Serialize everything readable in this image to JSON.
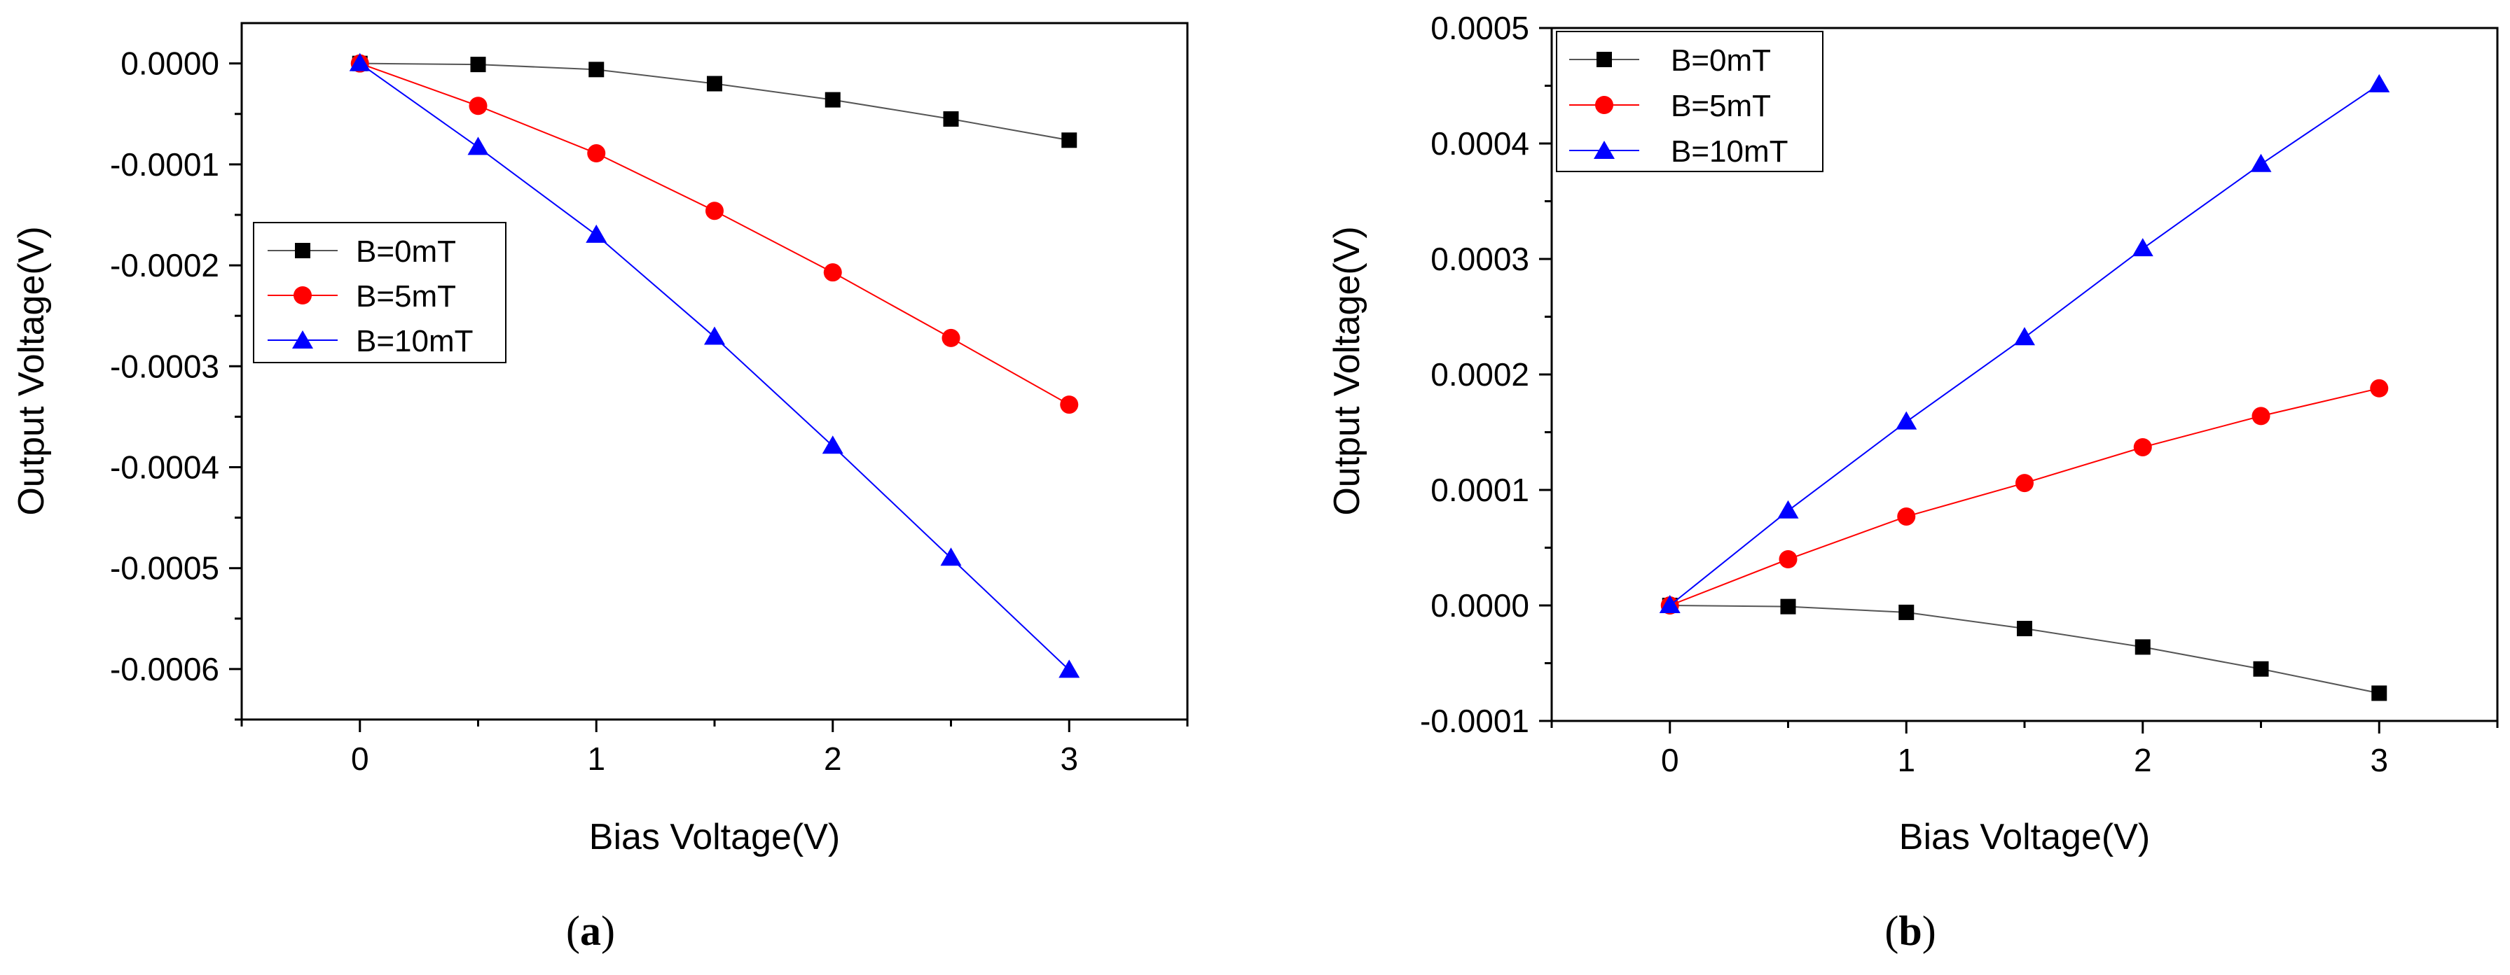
{
  "chart_data": [
    {
      "type": "line",
      "panel_label_open": "(",
      "panel_label_letter": "a",
      "panel_label_close": ")",
      "title": "",
      "xlabel": "Bias Voltage(V)",
      "ylabel": "Output Voltage(V)",
      "xlim": [
        -0.5,
        3.5
      ],
      "ylim": [
        -0.00065,
        4e-05
      ],
      "x": [
        0,
        0.5,
        1,
        1.5,
        2,
        2.5,
        3
      ],
      "xticks": [
        0,
        1,
        2,
        3
      ],
      "xtick_labels": [
        "0",
        "1",
        "2",
        "3"
      ],
      "yticks": [
        0.0,
        -0.0001,
        -0.0002,
        -0.0003,
        -0.0004,
        -0.0005,
        -0.0006
      ],
      "ytick_labels": [
        "0.0000",
        "-0.0001",
        "-0.0002",
        "-0.0003",
        "-0.0004",
        "-0.0005",
        "-0.0006"
      ],
      "grid": false,
      "legend_position": "center-left",
      "series": [
        {
          "name": "B=0mT",
          "marker": "square",
          "color": "#000000",
          "line_color": "#555555",
          "values": [
            0.0,
            -1e-06,
            -6e-06,
            -2e-05,
            -3.6e-05,
            -5.5e-05,
            -7.6e-05
          ]
        },
        {
          "name": "B=5mT",
          "marker": "circle",
          "color": "#ff0000",
          "line_color": "#ff0000",
          "values": [
            0.0,
            -4.2e-05,
            -8.9e-05,
            -0.000146,
            -0.000207,
            -0.000272,
            -0.000338
          ]
        },
        {
          "name": "B=10mT",
          "marker": "triangle",
          "color": "#0000ff",
          "line_color": "#0000ff",
          "values": [
            0.0,
            -8.3e-05,
            -0.00017,
            -0.000271,
            -0.000379,
            -0.00049,
            -0.000601
          ]
        }
      ]
    },
    {
      "type": "line",
      "panel_label_open": "(",
      "panel_label_letter": "b",
      "panel_label_close": ")",
      "title": "",
      "xlabel": "Bias Voltage(V)",
      "ylabel": "Output Voltage(V)",
      "xlim": [
        -0.5,
        3.5
      ],
      "ylim": [
        -0.0001,
        0.0005
      ],
      "x": [
        0,
        0.5,
        1,
        1.5,
        2,
        2.5,
        3
      ],
      "xticks": [
        0,
        1,
        2,
        3
      ],
      "xtick_labels": [
        "0",
        "1",
        "2",
        "3"
      ],
      "yticks": [
        -0.0001,
        0.0,
        0.0001,
        0.0002,
        0.0003,
        0.0004,
        0.0005
      ],
      "ytick_labels": [
        "-0.0001",
        "0.0000",
        "0.0001",
        "0.0002",
        "0.0003",
        "0.0004",
        "0.0005"
      ],
      "grid": false,
      "legend_position": "top-left",
      "series": [
        {
          "name": "B=0mT",
          "marker": "square",
          "color": "#000000",
          "line_color": "#555555",
          "values": [
            0.0,
            -1e-06,
            -6e-06,
            -2e-05,
            -3.6e-05,
            -5.5e-05,
            -7.6e-05
          ]
        },
        {
          "name": "B=5mT",
          "marker": "circle",
          "color": "#ff0000",
          "line_color": "#ff0000",
          "values": [
            0.0,
            4e-05,
            7.7e-05,
            0.000106,
            0.000137,
            0.000164,
            0.000188
          ]
        },
        {
          "name": "B=10mT",
          "marker": "triangle",
          "color": "#0000ff",
          "line_color": "#0000ff",
          "values": [
            0.0,
            8.2e-05,
            0.000159,
            0.000232,
            0.000309,
            0.000382,
            0.000451
          ]
        }
      ]
    }
  ]
}
